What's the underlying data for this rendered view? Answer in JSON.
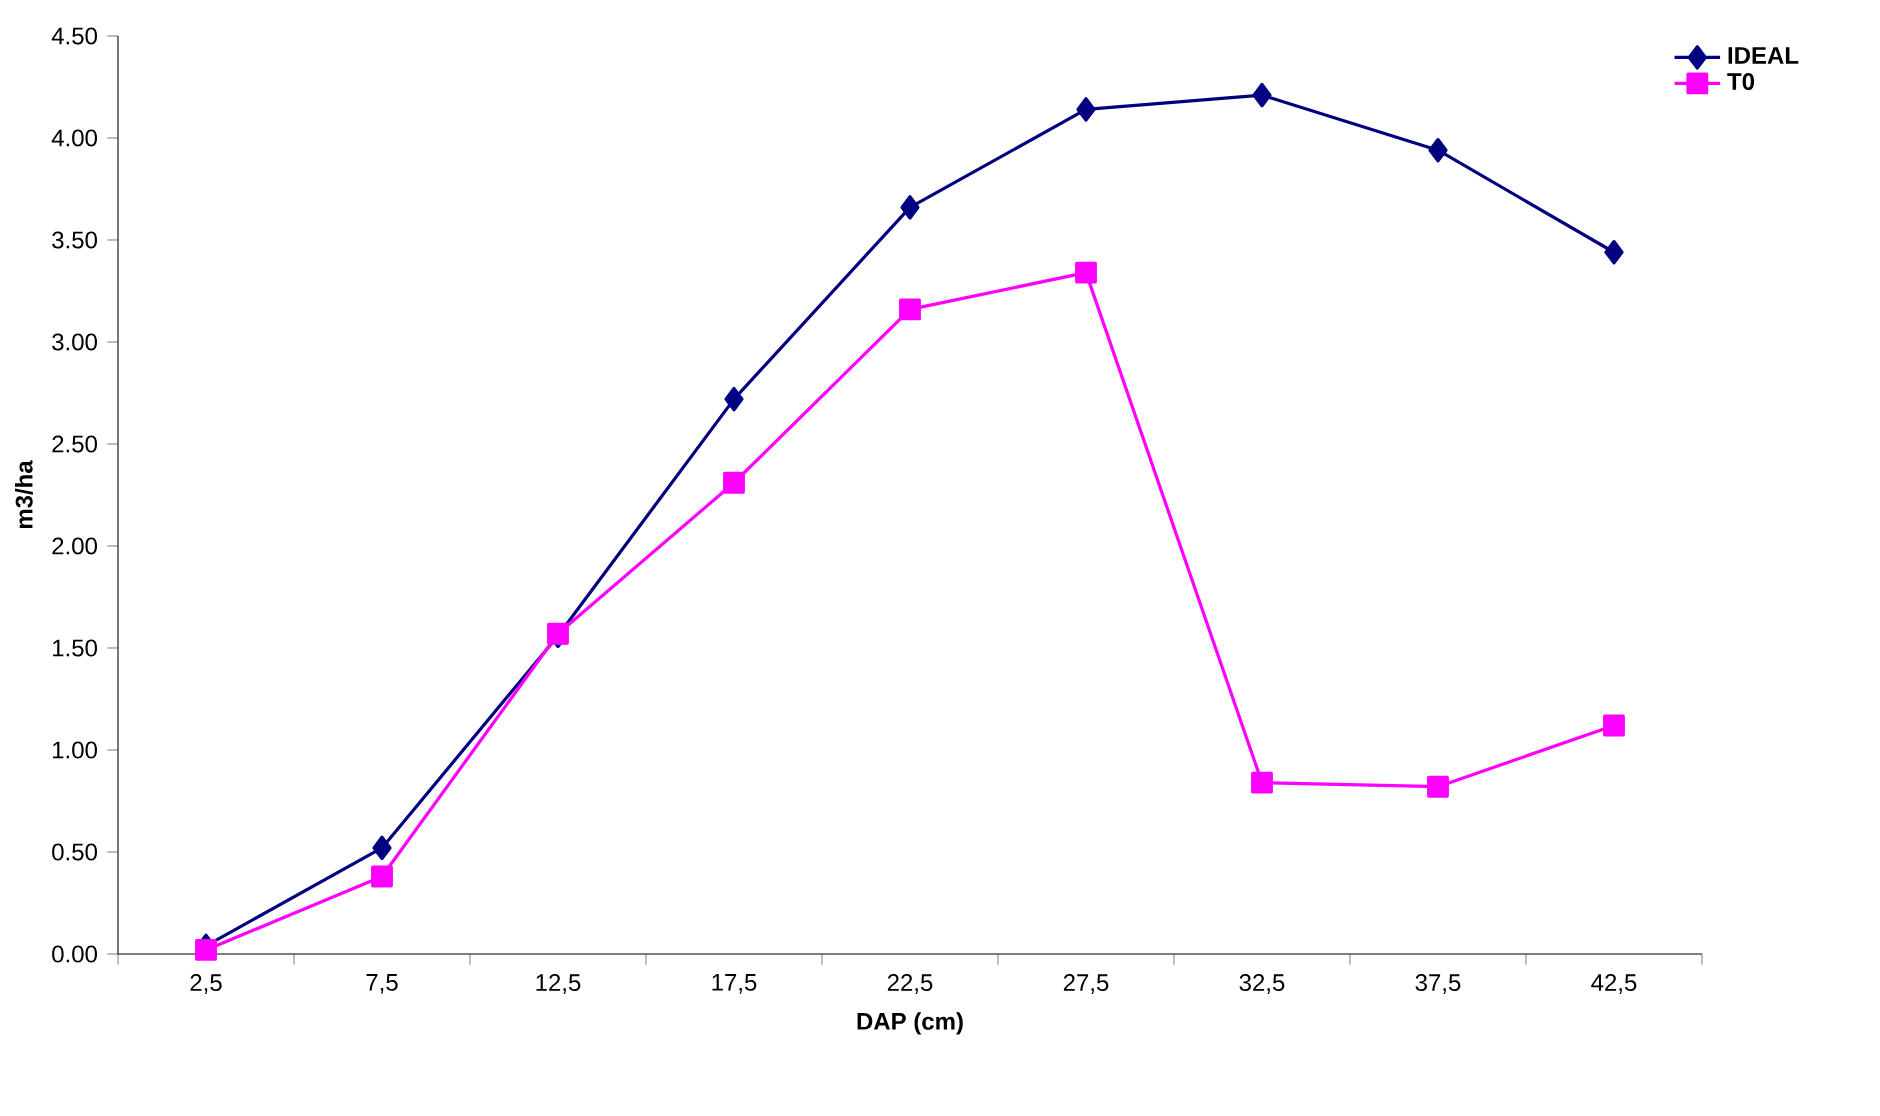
{
  "chart_data": {
    "type": "line",
    "xlabel": "DAP (cm)",
    "ylabel": "m3/ha",
    "categories": [
      "2,5",
      "7,5",
      "12,5",
      "17,5",
      "22,5",
      "27,5",
      "32,5",
      "37,5",
      "42,5"
    ],
    "series": [
      {
        "name": "IDEAL",
        "color": "#000080",
        "marker": "diamond",
        "values": [
          0.04,
          0.52,
          1.56,
          2.72,
          3.66,
          4.14,
          4.21,
          3.94,
          3.44
        ]
      },
      {
        "name": "T0",
        "color": "#ff00ff",
        "marker": "square",
        "values": [
          0.02,
          0.38,
          1.57,
          2.31,
          3.16,
          3.34,
          0.84,
          0.82,
          1.12
        ]
      }
    ],
    "ylim": [
      0,
      4.5
    ],
    "yticks": [
      {
        "value": 0,
        "label": "0.00"
      },
      {
        "value": 0.5,
        "label": "0.50"
      },
      {
        "value": 1,
        "label": "1.00"
      },
      {
        "value": 1.5,
        "label": "1.50"
      },
      {
        "value": 2,
        "label": "2.00"
      },
      {
        "value": 2.5,
        "label": "2.50"
      },
      {
        "value": 3,
        "label": "3.00"
      },
      {
        "value": 3.5,
        "label": "3.50"
      },
      {
        "value": 4,
        "label": "4.00"
      },
      {
        "value": 4.5,
        "label": "4.50"
      }
    ],
    "grid": false,
    "legend": "top right"
  }
}
